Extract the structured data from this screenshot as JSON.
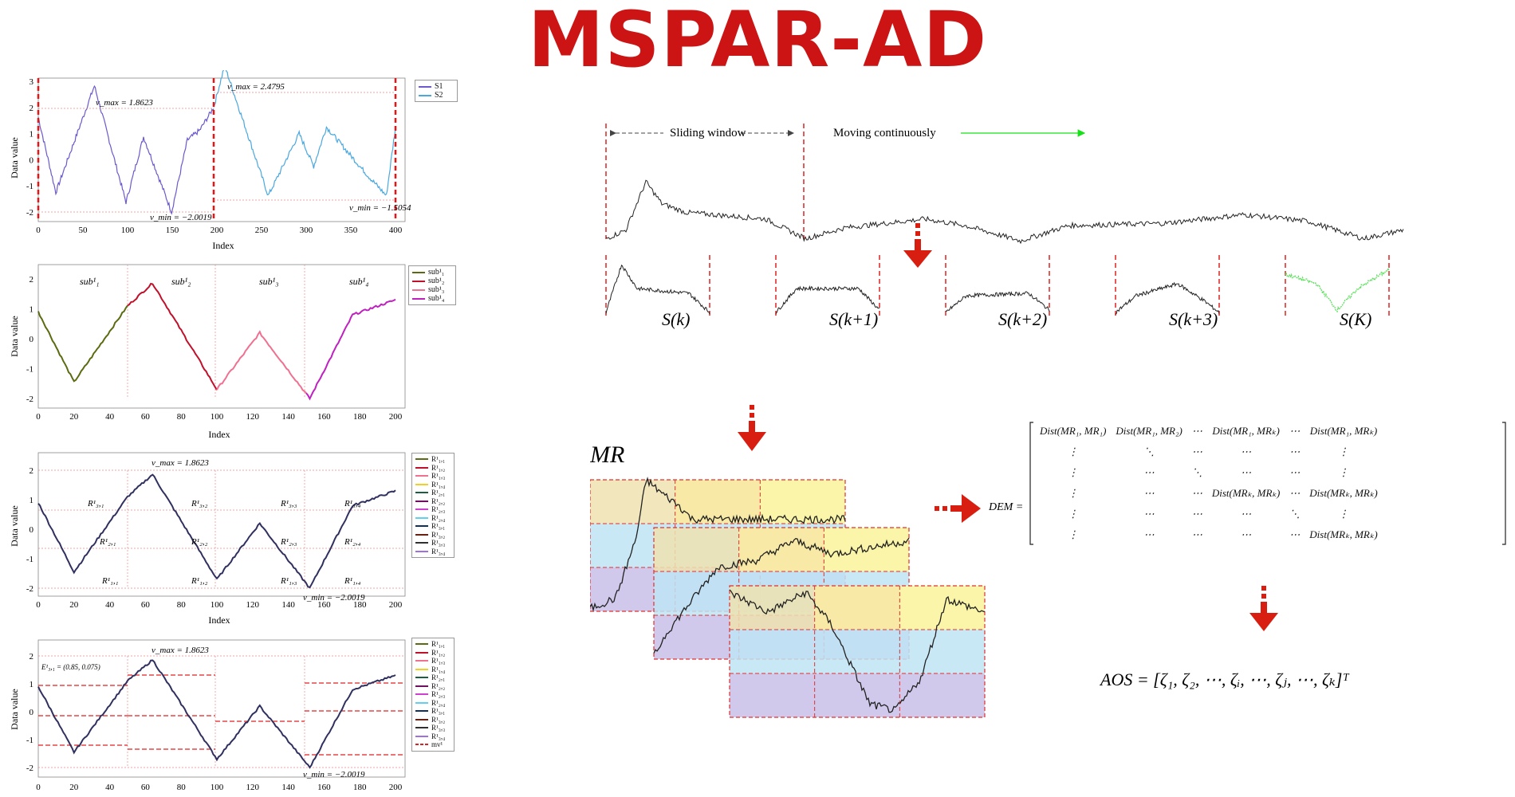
{
  "title": "MSPAR-AD",
  "panel1": {
    "ylabel": "Data value",
    "xlabel": "Index",
    "yticks": [
      "3",
      "2",
      "1",
      "0",
      "-1",
      "-2"
    ],
    "xticks": [
      "0",
      "50",
      "100",
      "150",
      "200",
      "250",
      "300",
      "350",
      "400"
    ],
    "vmax1": "v_max = 1.8623",
    "vmax2": "v_max = 2.4795",
    "vmin1": "v_min = −2.0019",
    "vmin2": "v_min = −1.5054",
    "legend": [
      "S1",
      "S2"
    ]
  },
  "panel2": {
    "ylabel": "Data value",
    "xlabel": "Index",
    "yticks": [
      "2",
      "1",
      "0",
      "-1",
      "-2"
    ],
    "xticks": [
      "0",
      "20",
      "40",
      "60",
      "80",
      "100",
      "120",
      "140",
      "160",
      "180",
      "200"
    ],
    "sub_labels": [
      "sub¹₁",
      "sub¹₂",
      "sub¹₃",
      "sub¹₄"
    ],
    "legend": [
      "sub¹₁",
      "sub¹₂",
      "sub¹₃",
      "sub¹₄"
    ]
  },
  "panel3": {
    "ylabel": "Data value",
    "xlabel": "Index",
    "yticks": [
      "2",
      "1",
      "0",
      "-1",
      "-2"
    ],
    "xticks": [
      "0",
      "20",
      "40",
      "60",
      "80",
      "100",
      "120",
      "140",
      "160",
      "180",
      "200"
    ],
    "vmax": "v_max = 1.8623",
    "vmin": "v_min = −2.0019",
    "region_labels": [
      "R¹₃,₁",
      "R¹₂,₁",
      "R¹₁,₁",
      "R¹₃,₂",
      "R¹₂,₂",
      "R¹₁,₂",
      "R¹₃,₃",
      "R¹₂,₃",
      "R¹₁,₃",
      "R¹₃,₄",
      "R¹₂,₄",
      "R¹₁,₄"
    ],
    "legend": [
      "R¹₁,₁",
      "R¹₁,₂",
      "R¹₁,₃",
      "R¹₁,₄",
      "R¹₂,₁",
      "R¹₂,₂",
      "R¹₂,₃",
      "R¹₂,₄",
      "R¹₃,₁",
      "R¹₃,₂",
      "R¹₃,₃",
      "R¹₃,₄"
    ]
  },
  "panel4": {
    "ylabel": "Data value",
    "yticks": [
      "2",
      "1",
      "0",
      "-1",
      "-2"
    ],
    "xticks": [
      "0",
      "20",
      "40",
      "60",
      "80",
      "100",
      "120",
      "140",
      "160",
      "180",
      "200"
    ],
    "vmax": "v_max = 1.8623",
    "vmin": "v_min = −2.0019",
    "annotation": "E¹₃,₁ = (0.85, 0.075)",
    "legend": [
      "R¹₁,₁",
      "R¹₁,₂",
      "R¹₁,₃",
      "R¹₁,₄",
      "R¹₂,₁",
      "R¹₂,₂",
      "R¹₂,₃",
      "R¹₂,₄",
      "R¹₃,₁",
      "R¹₃,₂",
      "R¹₃,₃",
      "R¹₃,₄",
      "mv¹"
    ]
  },
  "flow": {
    "sliding_window": "Sliding window",
    "moving": "Moving  continuously",
    "subseq_labels": [
      "S(k)",
      "S(k+1)",
      "S(k+2)",
      "S(k+3)",
      "S(K)"
    ],
    "mr_label": "MR",
    "dem_label": "DEM =",
    "dem_rows": [
      [
        "Dist(MR₁, MR₁)",
        "Dist(MR₁, MR₂)",
        "⋯",
        "Dist(MR₁, MRₖ)",
        "⋯",
        "Dist(MR₁, MRₖ)"
      ],
      [
        "⋮",
        "⋱",
        "⋯",
        "⋯",
        "⋯",
        "⋮"
      ],
      [
        "⋮",
        "⋯",
        "⋱",
        "⋯",
        "⋯",
        "⋮"
      ],
      [
        "⋮",
        "⋯",
        "⋯",
        "Dist(MRₖ, MRₖ)",
        "⋯",
        "Dist(MRₖ, MRₖ)"
      ],
      [
        "⋮",
        "⋯",
        "⋯",
        "⋯",
        "⋱",
        "⋮"
      ],
      [
        "⋮",
        "⋯",
        "⋯",
        "⋯",
        "⋯",
        "Dist(MRₖ, MRₖ)"
      ]
    ],
    "aos": "AOS = [ζ₁, ζ₂, ⋯, ζᵢ, ⋯, ζⱼ, ⋯, ζₖ]ᵀ"
  },
  "colors": {
    "accent_red": "#cc1414",
    "s1": "#6a5acd",
    "s2": "#4aa8e0"
  }
}
